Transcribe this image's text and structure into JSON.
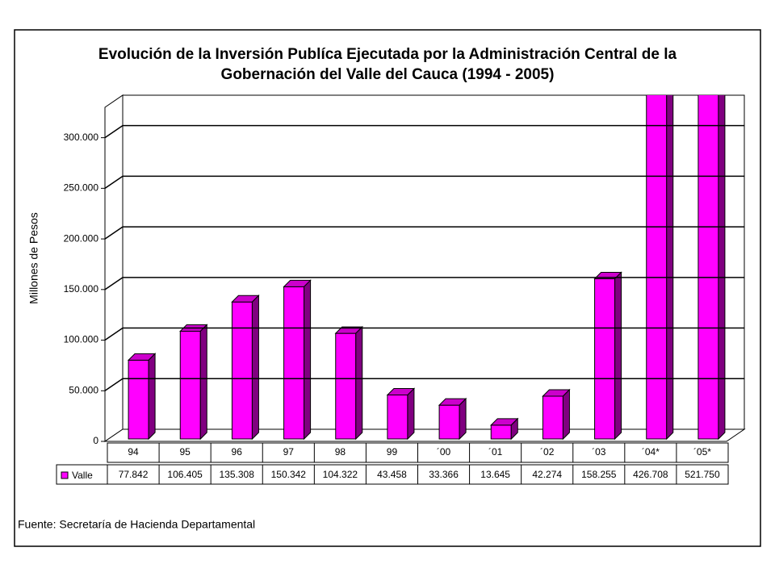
{
  "chart_data": {
    "type": "bar3d",
    "title": "Evolución de la Inversión Publíca Ejecutada por la Administración Central de la",
    "subtitle": "Gobernación del Valle del Cauca (1994 - 2005)",
    "y_label": "Millones de Pesos",
    "source": "Fuente: Secretaría de Hacienda Departamental",
    "categories": [
      "94",
      "95",
      "96",
      "97",
      "98",
      "99",
      "´00",
      "´01",
      "´02",
      "´03",
      "´04*",
      "´05*"
    ],
    "series": [
      {
        "name": "Valle",
        "color": "#ff00ff",
        "values": [
          77842,
          106405,
          135308,
          150342,
          104322,
          43458,
          33366,
          13645,
          42274,
          158255,
          426708,
          521750
        ],
        "value_labels": [
          "77.842",
          "106.405",
          "135.308",
          "150.342",
          "104.322",
          "43.458",
          "33.366",
          "13.645",
          "42.274",
          "158.255",
          "426.708",
          "521.750"
        ]
      }
    ],
    "ylim": [
      0,
      330000
    ],
    "yticks": [
      0,
      {
        "value": 50000,
        "label": "50.000"
      },
      {
        "value": 100000,
        "label": "100.000"
      },
      {
        "value": 150000,
        "label": "150.000"
      },
      {
        "value": 200000,
        "label": "200.000"
      },
      {
        "value": 250000,
        "label": "250.000"
      },
      {
        "value": 300000,
        "label": "300.000"
      }
    ],
    "grid": true
  }
}
